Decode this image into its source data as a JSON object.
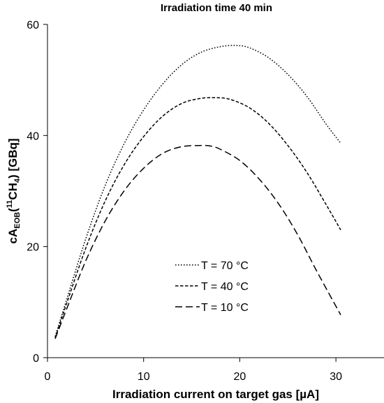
{
  "chart_data": {
    "type": "line",
    "title": "Irradiation time 40 min",
    "xlabel": "Irradiation current on target gas [µA]",
    "ylabel": {
      "prefix": "cA",
      "sub1": "EOB",
      "paren_open": "(",
      "sup": "11",
      "mid": "CH",
      "sub2": "4",
      "suffix": ") [GBq]"
    },
    "xlim": [
      0,
      35
    ],
    "ylim": [
      0,
      60
    ],
    "xticks": [
      0,
      10,
      20,
      30
    ],
    "yticks": [
      0,
      20,
      40,
      60
    ],
    "grid": false,
    "legend_position": "center-right",
    "series": [
      {
        "name": "T = 70 °C",
        "dash": "dotted",
        "x": [
          0.8,
          2,
          4,
          6,
          8,
          10,
          12,
          14,
          16,
          18,
          19.6,
          21,
          23,
          25,
          27,
          29,
          30.5
        ],
        "y": [
          3.8,
          10.5,
          21.5,
          31.0,
          38.6,
          44.6,
          49.3,
          52.8,
          55.0,
          56.0,
          56.2,
          55.8,
          54.0,
          51.0,
          47.0,
          42.0,
          38.6
        ]
      },
      {
        "name": "T = 40 °C",
        "dash": "short-dashed",
        "x": [
          0.8,
          2,
          4,
          6,
          8,
          10,
          12,
          14,
          16,
          17.6,
          19,
          21,
          23,
          25,
          27,
          29,
          30.5
        ],
        "y": [
          3.6,
          9.8,
          19.8,
          28.2,
          34.8,
          39.8,
          43.5,
          45.8,
          46.7,
          46.8,
          46.5,
          45.0,
          42.2,
          38.2,
          33.3,
          27.5,
          23.0
        ]
      },
      {
        "name": "T = 10 °C",
        "dash": "long-dashed",
        "x": [
          0.8,
          2,
          4,
          6,
          8,
          10,
          12,
          14,
          16,
          17,
          18,
          20,
          22,
          24,
          26,
          28,
          30.5
        ],
        "y": [
          3.4,
          8.8,
          17.5,
          24.6,
          30.1,
          34.1,
          36.8,
          38.0,
          38.2,
          38.1,
          37.5,
          35.5,
          32.2,
          27.8,
          22.2,
          15.6,
          7.7
        ]
      }
    ]
  }
}
